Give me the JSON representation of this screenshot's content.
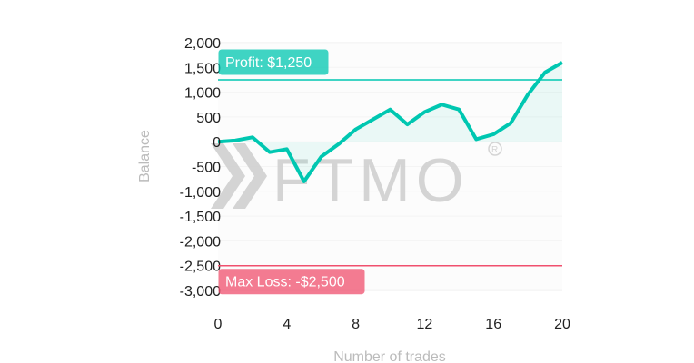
{
  "chart_data": {
    "type": "line",
    "xlabel": "Number of trades",
    "ylabel": "Balance",
    "xlim": [
      0,
      20
    ],
    "ylim": [
      -3000,
      2000
    ],
    "xticks": [
      0,
      4,
      8,
      12,
      16,
      20
    ],
    "xtick_labels": [
      "0",
      "4",
      "8",
      "12",
      "16",
      "20"
    ],
    "yticks": [
      2000,
      1500,
      1000,
      500,
      0,
      -500,
      -1000,
      -1500,
      -2000,
      -2500,
      -3000
    ],
    "ytick_labels": [
      "2,000",
      "1,500",
      "1,000",
      "500",
      "0",
      "-500",
      "-1,000",
      "-1,500",
      "-2,000",
      "-2,500",
      "-3,000"
    ],
    "grid": true,
    "series": [
      {
        "x": [
          0,
          1,
          2,
          3,
          4,
          5,
          6,
          7,
          8,
          9,
          10,
          11,
          12,
          13,
          14,
          15,
          16,
          17,
          18,
          19,
          20
        ],
        "values": [
          0,
          25,
          90,
          -210,
          -150,
          -800,
          -300,
          -50,
          250,
          450,
          650,
          350,
          600,
          750,
          650,
          50,
          150,
          375,
          950,
          1400,
          1600
        ],
        "color": "#00c7b1"
      }
    ],
    "annotations": [
      {
        "label": "Profit: $1,250",
        "value": 1250,
        "color": "#00c7b1"
      },
      {
        "label": "Max Loss: -$2,500",
        "value": -2500,
        "color": "#f0506e"
      }
    ],
    "watermark": "FTMO"
  }
}
